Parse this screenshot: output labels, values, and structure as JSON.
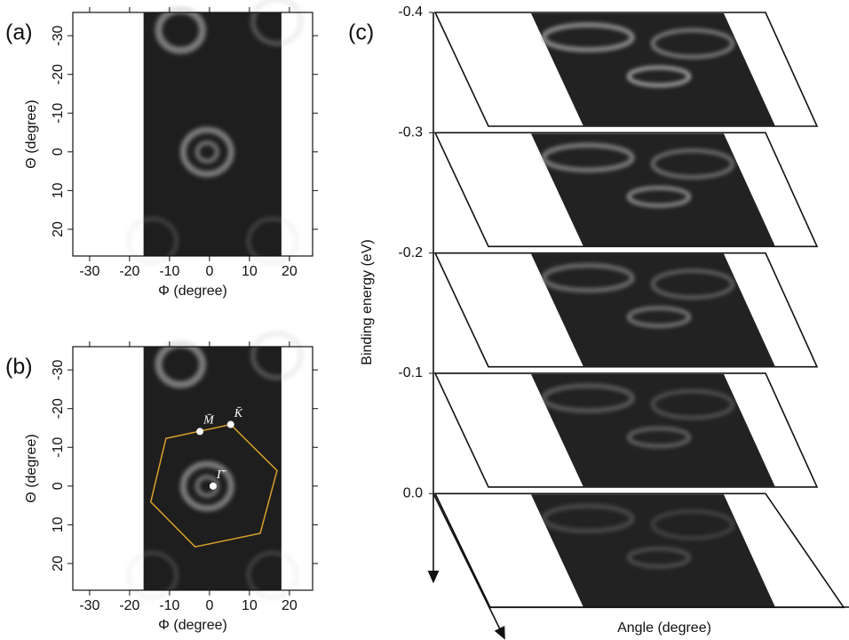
{
  "chart_data": [
    {
      "type": "image",
      "panel_label": "(a)",
      "xlabel": "Φ (degree)",
      "ylabel": "Θ (degree)",
      "xlim": [
        -34.2,
        25.8
      ],
      "ylim": [
        -36,
        26.9
      ],
      "y_inverted": true,
      "xticks": [
        -30,
        -20,
        -10,
        0,
        10,
        20
      ],
      "yticks": [
        -30,
        -20,
        -10,
        0,
        10,
        20
      ],
      "image_xlim": [
        -16.5,
        18
      ]
    },
    {
      "type": "image",
      "panel_label": "(b)",
      "xlabel": "Φ (degree)",
      "ylabel": "Θ (degree)",
      "xlim": [
        -34.2,
        25.8
      ],
      "ylim": [
        -36,
        26.9
      ],
      "y_inverted": true,
      "xticks": [
        -30,
        -20,
        -10,
        0,
        10,
        20
      ],
      "yticks": [
        -30,
        -20,
        -10,
        0,
        10,
        20
      ],
      "image_xlim": [
        -16.5,
        18
      ],
      "polygon": {
        "color": "#d9a02a",
        "x": [
          -10.9,
          5.3,
          16.9,
          12.7,
          -3.6,
          -14.7
        ],
        "y": [
          -12.3,
          -15.9,
          -4.0,
          12.2,
          15.7,
          4.1
        ]
      },
      "point_color": "#ffffff",
      "points": [
        {
          "label": "M̄",
          "x": -2.4,
          "y": -14.1
        },
        {
          "label": "K̄",
          "x": 5.3,
          "y": -15.9
        },
        {
          "label": "Γ̄",
          "x": 0.9,
          "y": 0.0
        }
      ]
    },
    {
      "type": "stack",
      "panel_label": "(c)",
      "ylabel": "Binding energy (eV)",
      "xlabel": "Angle (degree)",
      "ylim": [
        -0.4,
        0.07
      ],
      "yticks": [
        -0.4,
        -0.3,
        -0.2,
        -0.1,
        {
          "value": 0,
          "label": "0.0"
        }
      ]
    }
  ]
}
